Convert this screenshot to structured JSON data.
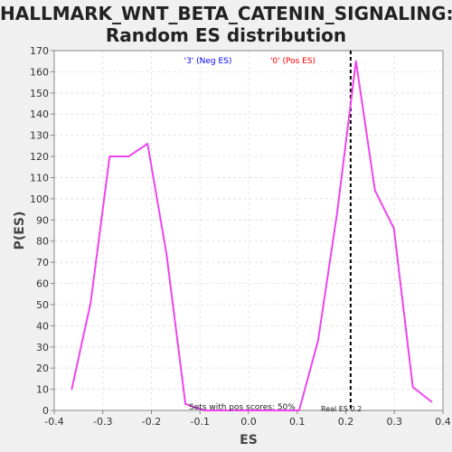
{
  "chart_data": {
    "type": "line",
    "title": "HALLMARK_WNT_BETA_CATENIN_SIGNALING:",
    "subtitle": "Random ES distribution",
    "xlabel": "ES",
    "ylabel": "P(ES)",
    "xlim": [
      -0.4,
      0.4
    ],
    "ylim": [
      0,
      170
    ],
    "xticks": [
      -0.4,
      -0.3,
      -0.2,
      -0.1,
      0.0,
      0.1,
      0.2,
      0.3,
      0.4
    ],
    "xtick_labels": [
      "-0.4",
      "-0.3",
      "-0.2",
      "-0.1",
      "0.0",
      "0.1",
      "0.2",
      "0.3",
      "0.4"
    ],
    "yticks": [
      0,
      10,
      20,
      30,
      40,
      50,
      60,
      70,
      80,
      90,
      100,
      110,
      120,
      130,
      140,
      150,
      160,
      170
    ],
    "grid": true,
    "legend": [
      {
        "label": "'3' (Neg ES)",
        "color": "#0000ff"
      },
      {
        "label": "'0' (Pos ES)",
        "color": "#ff0000"
      }
    ],
    "series": [
      {
        "color": "#ee44ee",
        "x": [
          -0.364,
          -0.325,
          -0.286,
          -0.247,
          -0.208,
          -0.169,
          -0.13,
          -0.091,
          -0.052,
          -0.013,
          0.026,
          0.065,
          0.104,
          0.143,
          0.182,
          0.221,
          0.26,
          0.299,
          0.338,
          0.377
        ],
        "y": [
          10,
          51,
          120,
          120,
          126,
          74,
          3,
          0,
          0,
          0,
          0,
          0,
          0,
          33,
          93,
          165,
          104,
          86,
          11,
          4
        ]
      }
    ],
    "real_es": 0.21,
    "annotations": {
      "sets_pos": "Sets with pos scores: 50%",
      "real_es": "Real ES 0.2"
    }
  }
}
